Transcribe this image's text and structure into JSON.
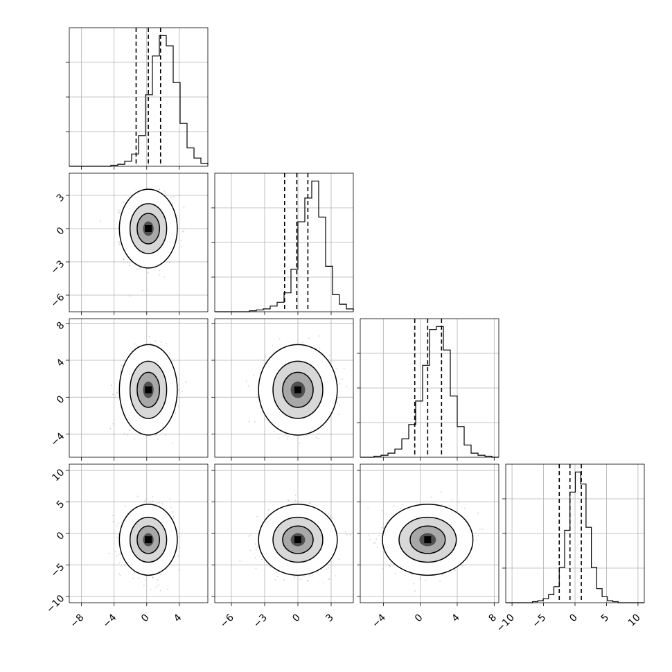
{
  "chart_data": {
    "type": "corner",
    "params": [
      {
        "name": "",
        "lim": [
          -9.5,
          7.5
        ],
        "ticks": [
          -8,
          -4,
          0,
          4
        ],
        "hist_edges_start": -9.5,
        "hist_bin_width": 0.85,
        "hist_counts": [
          0,
          0,
          0,
          0,
          0,
          0,
          1,
          2,
          5,
          12,
          30,
          70,
          108,
          128,
          118,
          82,
          42,
          18,
          8,
          3,
          1,
          0,
          0,
          0,
          0,
          0,
          0,
          0,
          0,
          0
        ],
        "quantiles": [
          -1.3,
          0.2,
          1.7
        ],
        "center": [
          0.2,
          0.0
        ]
      },
      {
        "name": "",
        "lim": [
          -7.5,
          5.0
        ],
        "ticks": [
          -6,
          -3,
          0,
          3
        ],
        "hist_edges_start": -7.5,
        "hist_bin_width": 0.625,
        "hist_counts": [
          0,
          0,
          0,
          0,
          0,
          1,
          2,
          3,
          6,
          10,
          20,
          45,
          95,
          120,
          138,
          100,
          48,
          18,
          8,
          3,
          1,
          0,
          0,
          0,
          0,
          0,
          0,
          0,
          0,
          0
        ],
        "quantiles": [
          -1.2,
          -0.1,
          0.9
        ],
        "center": [
          0.0,
          0.0
        ]
      },
      {
        "name": "",
        "lim": [
          -6.5,
          8.5
        ],
        "ticks": [
          -4,
          0,
          4,
          8
        ],
        "hist_edges_start": -6.5,
        "hist_bin_width": 0.75,
        "hist_counts": [
          0,
          0,
          1,
          2,
          4,
          8,
          18,
          32,
          55,
          90,
          125,
          128,
          105,
          60,
          30,
          12,
          4,
          2,
          1,
          0,
          0,
          0,
          0,
          0,
          0,
          0,
          0,
          0,
          0,
          0
        ],
        "quantiles": [
          -0.6,
          0.8,
          2.3
        ],
        "center": [
          0.7,
          0.0
        ]
      },
      {
        "name": "",
        "lim": [
          -11.0,
          11.0
        ],
        "ticks": [
          -10,
          -5,
          0,
          5,
          10
        ],
        "hist_edges_start": -11.0,
        "hist_bin_width": 0.85,
        "hist_counts": [
          0,
          0,
          0,
          0,
          0,
          1,
          2,
          4,
          8,
          16,
          35,
          72,
          110,
          130,
          118,
          75,
          35,
          14,
          6,
          2,
          1,
          0,
          0,
          0,
          0,
          0,
          0,
          0,
          0,
          0
        ],
        "quantiles": [
          -2.5,
          -0.8,
          1.0
        ],
        "center": [
          -0.8,
          0.0
        ]
      }
    ],
    "pairs": [
      {
        "row": 1,
        "col": 0,
        "cx": 0.2,
        "cy": 0.0,
        "sx": 1.45,
        "sy": 1.45
      },
      {
        "row": 2,
        "col": 0,
        "cx": 0.2,
        "cy": 0.8,
        "sx": 1.45,
        "sy": 2.0
      },
      {
        "row": 2,
        "col": 1,
        "cx": 0.0,
        "cy": 0.8,
        "sx": 1.45,
        "sy": 2.0
      },
      {
        "row": 3,
        "col": 0,
        "cx": 0.2,
        "cy": -1.0,
        "sx": 1.45,
        "sy": 2.3
      },
      {
        "row": 3,
        "col": 1,
        "cx": 0.0,
        "cy": -1.0,
        "sx": 1.45,
        "sy": 2.3
      },
      {
        "row": 3,
        "col": 2,
        "cx": 0.8,
        "cy": -1.0,
        "sx": 2.0,
        "sy": 2.3
      }
    ],
    "row_tick_labels": [
      [
        "",
        "",
        "",
        ""
      ],
      [
        "−6",
        "−3",
        "0",
        "3"
      ],
      [
        "−4",
        "0",
        "4",
        "8"
      ],
      [
        "−10",
        "−5",
        "0",
        "5",
        "10"
      ]
    ],
    "bottom_tick_labels": [
      [
        "−8",
        "−4",
        "0",
        "4"
      ],
      [
        "−6",
        "−3",
        "0",
        "3"
      ],
      [
        "−4",
        "0",
        "4",
        "8"
      ],
      [
        "−10",
        "−5",
        "0",
        "5",
        "10"
      ]
    ]
  }
}
